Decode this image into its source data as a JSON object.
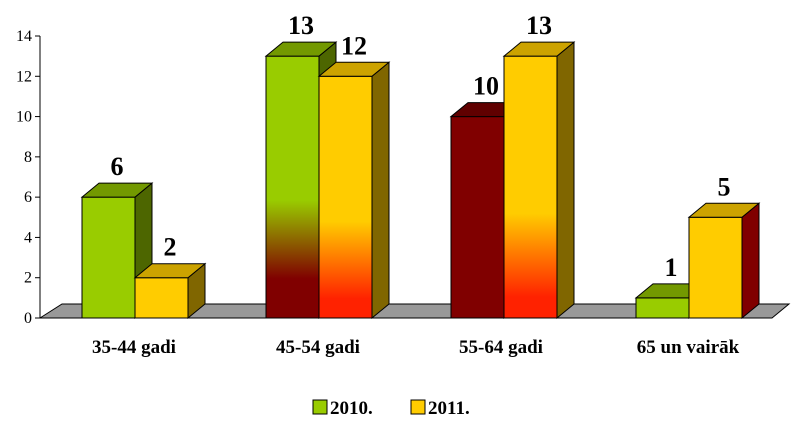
{
  "chart_data": {
    "type": "bar",
    "categories": [
      "35-44 gadi",
      "45-54 gadi",
      "55-64 gadi",
      "65 un vairāk"
    ],
    "series": [
      {
        "name": "2010.",
        "values": [
          6,
          13,
          10,
          1
        ],
        "color": "#99cc00"
      },
      {
        "name": "2011.",
        "values": [
          2,
          12,
          13,
          5
        ],
        "color": "#ffcc00"
      }
    ],
    "ylim": [
      0,
      14
    ],
    "yticks": [
      0,
      2,
      4,
      6,
      8,
      10,
      12,
      14
    ],
    "title": "",
    "xlabel": "",
    "ylabel": "",
    "legend_position": "bottom",
    "bar_colors": {
      "green_front": "#99cc00",
      "green_side": "#4d6600",
      "green_top": "#739900",
      "yellow_front": "#ffcc00",
      "yellow_side": "#806600",
      "yellow_top": "#cca300",
      "maroon_front": "#800000",
      "maroon_side": "#4d0000",
      "maroon_top": "#600000",
      "red_glow": "#ff2200",
      "floor": "#999999"
    }
  }
}
